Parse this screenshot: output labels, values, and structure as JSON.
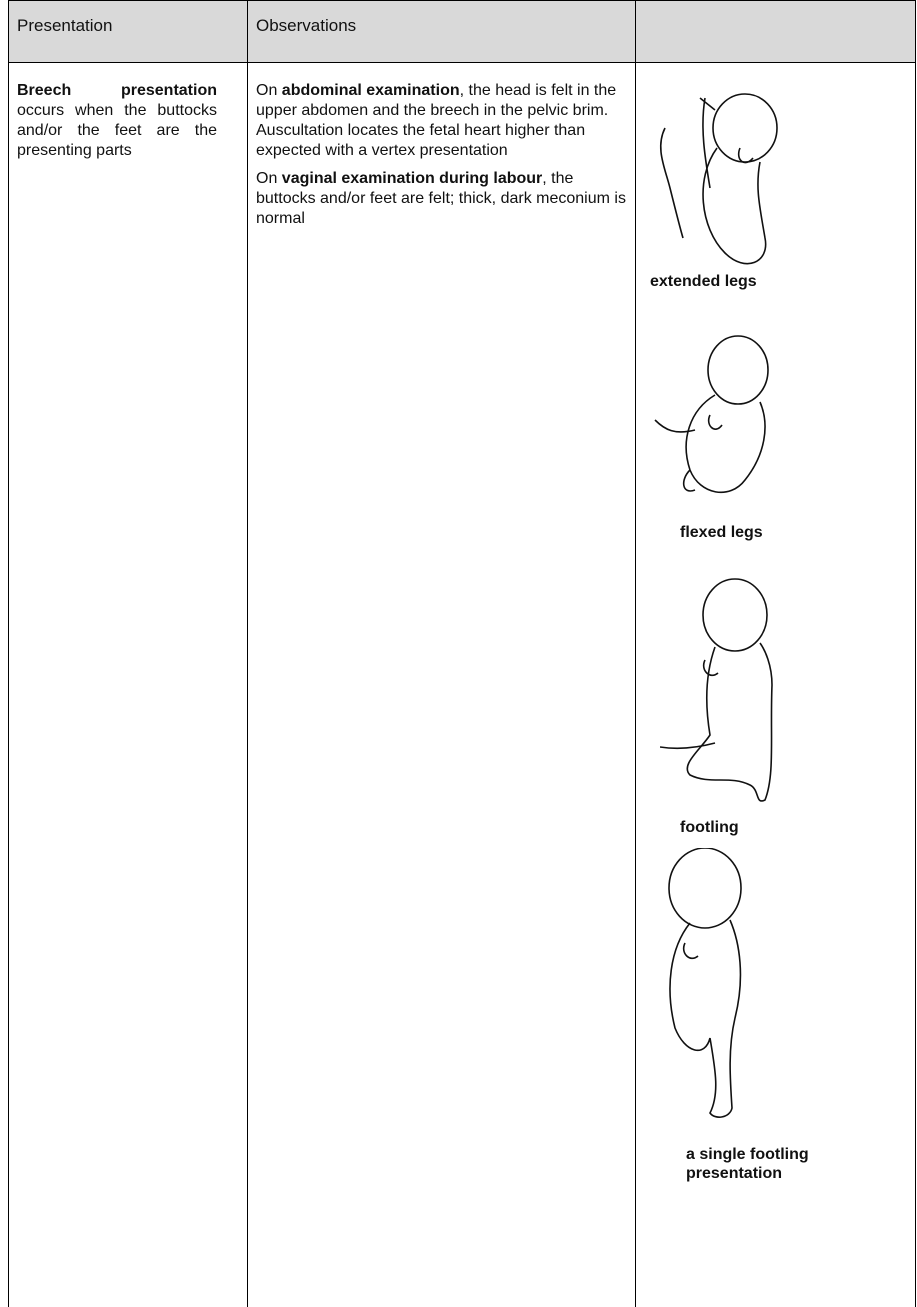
{
  "table": {
    "header": [
      "Presentation",
      "Observations"
    ],
    "presentation": {
      "bold": "Breech presentation",
      "text": "occurs when the buttocks and/or the feet are the presenting parts"
    },
    "observations": [
      {
        "before": "On",
        "bold": "abdominal examination",
        "after": ", the head is felt in the upper abdomen and the breech in the pelvic brim. Auscultation locates the fetal heart higher than expected with a vertex presentation"
      },
      {
        "before": "On",
        "bold": "vaginal examination during labour",
        "after": ", the buttocks and/or feet are felt; thick, dark meconium is normal"
      }
    ],
    "figures": [
      "extended legs",
      "flexed legs",
      "footling",
      "a single footling presentation"
    ]
  }
}
